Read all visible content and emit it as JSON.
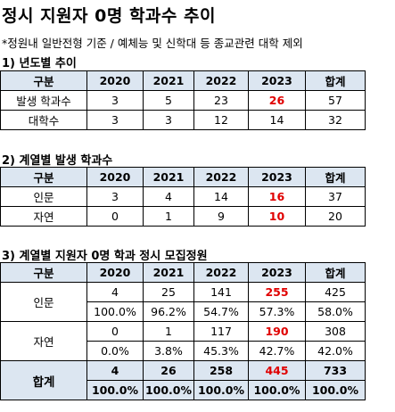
{
  "title": "정시 지원자 0명 학과수 추이",
  "note": "*정원내 일반전형 기준 / 예체능 및 신학대 등 종교관련 대학 제외",
  "header": {
    "label": "구분",
    "years": [
      "2020",
      "2021",
      "2022",
      "2023"
    ],
    "total": "합계"
  },
  "section1": {
    "title": "1) 년도별 추이",
    "rows": [
      {
        "label": "발생 학과수",
        "values": [
          "3",
          "5",
          "23",
          "26"
        ],
        "total": "57"
      },
      {
        "label": "대학수",
        "values": [
          "3",
          "3",
          "12",
          "14"
        ],
        "total": "32"
      }
    ]
  },
  "section2": {
    "title": "2) 계열별 발생 학과수",
    "rows": [
      {
        "label": "인문",
        "values": [
          "3",
          "4",
          "14",
          "16"
        ],
        "total": "37"
      },
      {
        "label": "자연",
        "values": [
          "0",
          "1",
          "9",
          "10"
        ],
        "total": "20"
      }
    ]
  },
  "section3": {
    "title": "3) 계열별 지원자 0명 학과 정시 모집정원",
    "rows": [
      {
        "label": "인문",
        "values": [
          "4",
          "25",
          "141",
          "255"
        ],
        "total": "425",
        "pcts": [
          "100.0%",
          "96.2%",
          "54.7%",
          "57.3%"
        ],
        "total_pct": "58.0%"
      },
      {
        "label": "자연",
        "values": [
          "0",
          "1",
          "117",
          "190"
        ],
        "total": "308",
        "pcts": [
          "0.0%",
          "3.8%",
          "45.3%",
          "42.7%"
        ],
        "total_pct": "42.0%"
      },
      {
        "label": "합계",
        "values": [
          "4",
          "26",
          "258",
          "445"
        ],
        "total": "733",
        "pcts": [
          "100.0%",
          "100.0%",
          "100.0%",
          "100.0%"
        ],
        "total_pct": "100.0%"
      }
    ]
  },
  "colors": {
    "header_bg": "#dce6f1",
    "highlight": "#e00000"
  }
}
